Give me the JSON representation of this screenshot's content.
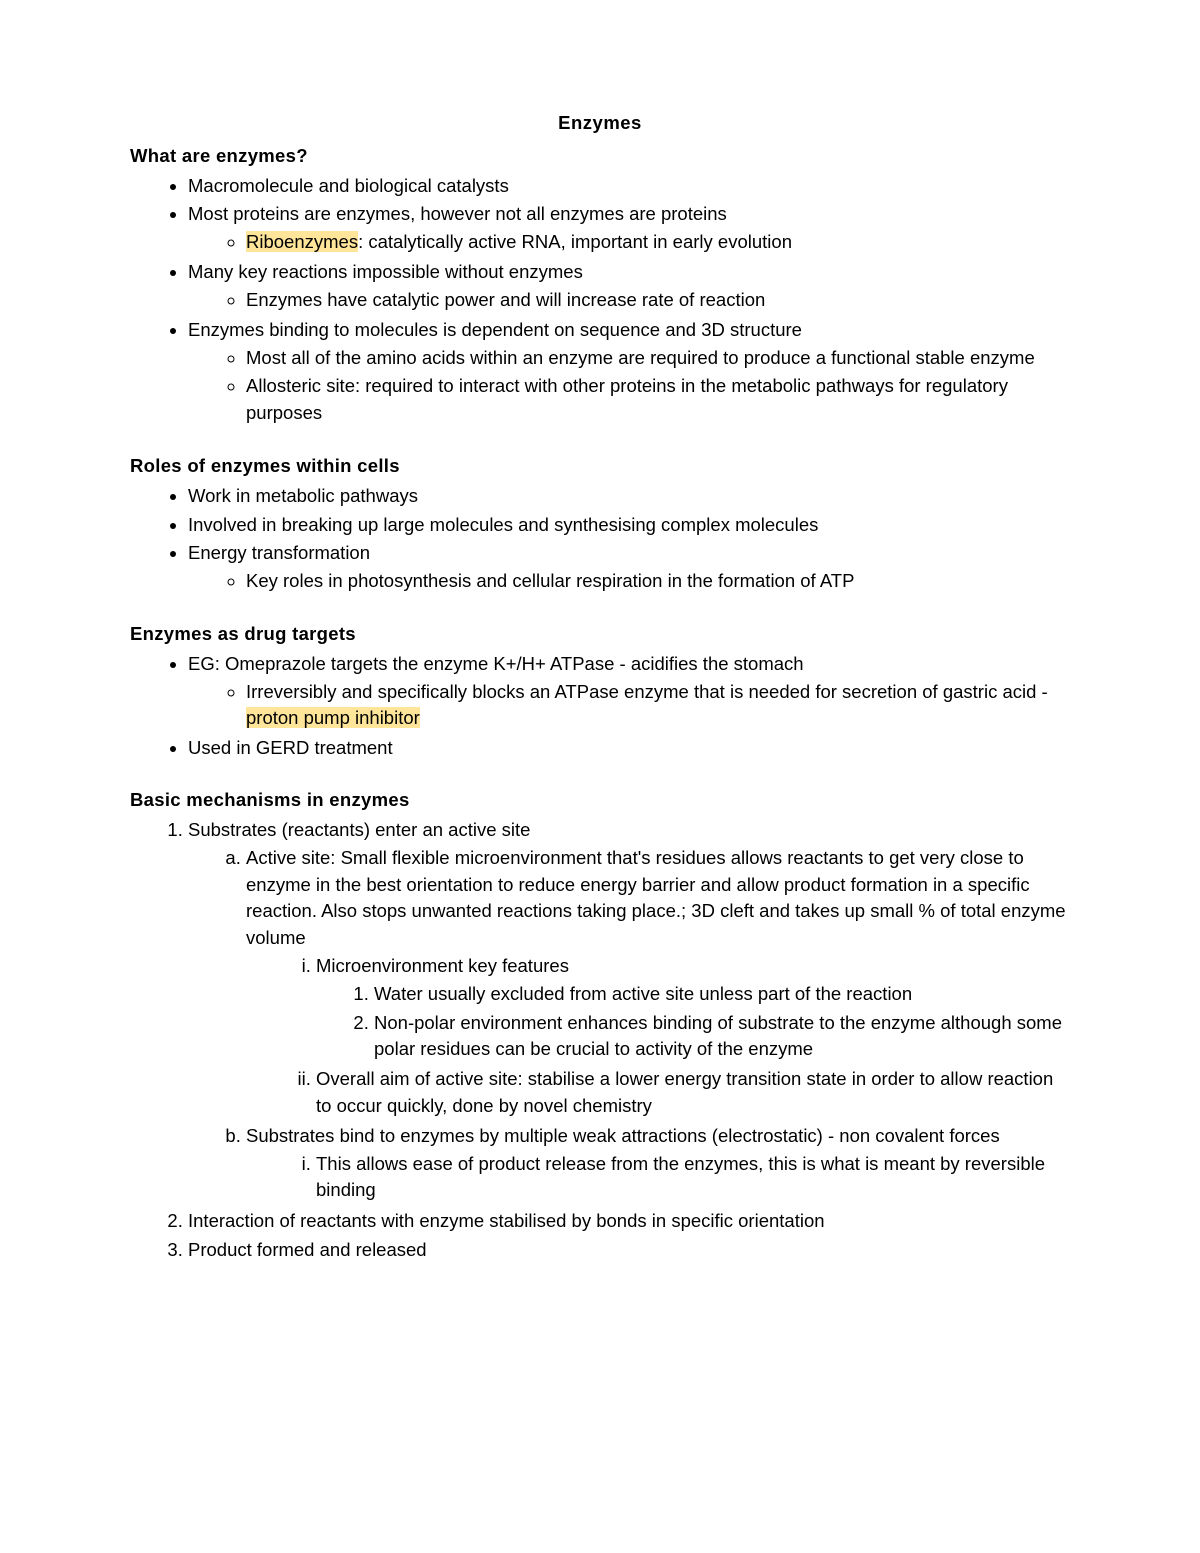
{
  "colors": {
    "highlight": "#ffe599",
    "text": "#000000",
    "background": "#ffffff"
  },
  "title": "Enzymes",
  "s1": {
    "heading": "What are enzymes?",
    "b1": "Macromolecule and biological catalysts",
    "b2": "Most proteins are enzymes, however not all enzymes are proteins",
    "b2_1_hl": "Riboenzymes",
    "b2_1_rest": ": catalytically active RNA, important in early evolution",
    "b3": "Many key reactions impossible without enzymes",
    "b3_1": "Enzymes have catalytic power and will increase rate of reaction",
    "b4": "Enzymes binding to molecules is dependent on sequence and 3D structure",
    "b4_1": "Most all of the amino acids within an enzyme are required to produce a functional stable enzyme",
    "b4_2": "Allosteric site: required to interact with other proteins in the metabolic pathways for regulatory purposes"
  },
  "s2": {
    "heading": "Roles of enzymes within cells",
    "b1": "Work in metabolic pathways",
    "b2": "Involved in breaking up large molecules and synthesising complex molecules",
    "b3": "Energy transformation",
    "b3_1": "Key roles in photosynthesis and cellular respiration in the formation of ATP"
  },
  "s3": {
    "heading": "Enzymes as drug targets",
    "b1": "EG: Omeprazole targets the enzyme K+/H+ ATPase - acidifies the stomach",
    "b1_1_pre": "Irreversibly and specifically blocks an ATPase enzyme that is needed for secretion of gastric acid - ",
    "b1_1_hl": "proton pump inhibitor",
    "b2": "Used in GERD treatment"
  },
  "s4": {
    "heading": "Basic mechanisms in enzymes",
    "n1": "Substrates (reactants) enter an active site",
    "n1a": "Active site: Small flexible microenvironment that's residues allows reactants to get very close to enzyme in the best orientation to reduce energy barrier and allow product formation in a specific reaction. Also stops unwanted reactions taking place.; 3D cleft and takes up small % of total enzyme volume",
    "n1a_i": "Microenvironment key features",
    "n1a_i_1": "Water usually excluded from active site unless part of the reaction",
    "n1a_i_2": "Non-polar environment enhances binding of substrate to the enzyme although some polar residues can be crucial to activity of the enzyme",
    "n1a_ii": "Overall aim of active site: stabilise a lower energy transition state in order to allow reaction to occur quickly, done by novel chemistry",
    "n1b": "Substrates bind to enzymes by multiple weak attractions (electrostatic) - non covalent forces",
    "n1b_i": "This allows ease of product release from the enzymes, this is what is meant by reversible binding",
    "n2": "Interaction of reactants with enzyme stabilised by bonds in specific orientation",
    "n3": "Product formed and released"
  }
}
